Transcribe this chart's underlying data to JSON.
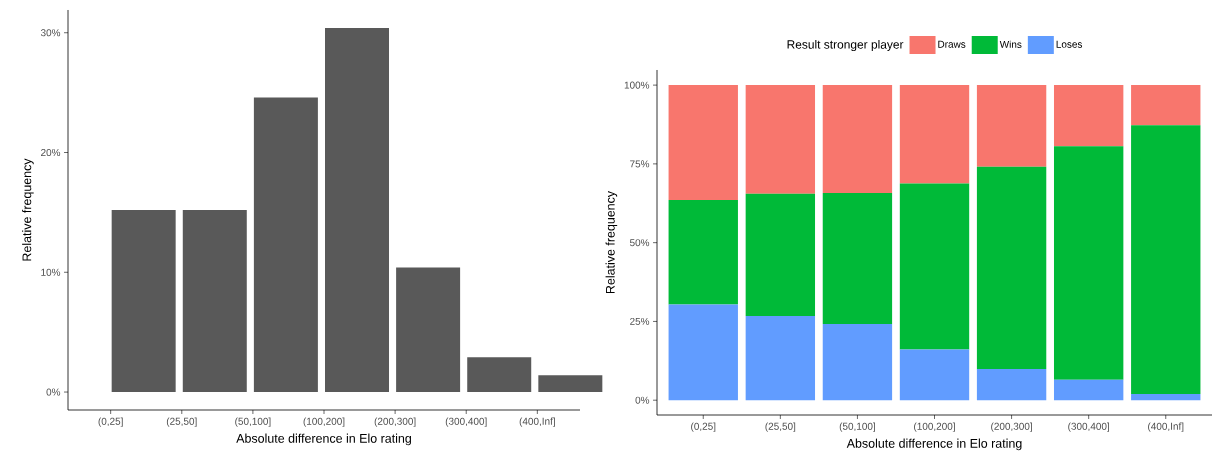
{
  "chart_data": [
    {
      "type": "bar",
      "xlabel": "Absolute difference in Elo rating",
      "ylabel": "Relative frequency",
      "categories": [
        "(0,25]",
        "(25,50]",
        "(50,100]",
        "(100,200]",
        "(200,300]",
        "(300,400]",
        "(400,Inf]"
      ],
      "values": [
        15.2,
        15.2,
        24.6,
        30.4,
        10.4,
        2.9,
        1.4
      ],
      "color": "#595959",
      "ylim": [
        -1.5,
        31.9
      ],
      "yticks": [
        {
          "value": 0,
          "label": "0%"
        },
        {
          "value": 10,
          "label": "10%"
        },
        {
          "value": 20,
          "label": "20%"
        },
        {
          "value": 30,
          "label": "30%"
        }
      ]
    },
    {
      "type": "bar",
      "stacked": true,
      "xlabel": "Absolute difference in Elo rating",
      "ylabel": "Relative frequency",
      "categories": [
        "(0,25]",
        "(25,50]",
        "(50,100]",
        "(100,200]",
        "(200,300]",
        "(300,400]",
        "(400,Inf]"
      ],
      "series": [
        {
          "name": "Loses",
          "color": "#619cff",
          "values": [
            30.4,
            26.7,
            24.2,
            16.1,
            9.9,
            6.5,
            2.0
          ]
        },
        {
          "name": "Wins",
          "color": "#00ba38",
          "values": [
            33.1,
            38.8,
            41.6,
            52.7,
            64.2,
            74.1,
            85.3
          ]
        },
        {
          "name": "Draws",
          "color": "#f8766d",
          "values": [
            36.5,
            34.5,
            34.2,
            31.2,
            25.9,
            19.4,
            12.7
          ]
        }
      ],
      "legend": "top",
      "legend_title": "Result stronger player",
      "ylim": [
        -4.7,
        104.8
      ],
      "yticks": [
        {
          "value": 0,
          "label": "0%"
        },
        {
          "value": 25,
          "label": "25%"
        },
        {
          "value": 50,
          "label": "50%"
        },
        {
          "value": 75,
          "label": "75%"
        },
        {
          "value": 100,
          "label": "100%"
        }
      ]
    }
  ]
}
